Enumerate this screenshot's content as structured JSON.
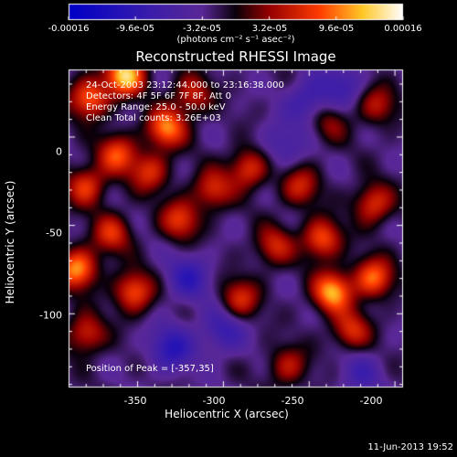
{
  "chart_data": {
    "type": "heatmap",
    "title": "Reconstructed RHESSI Image",
    "xlabel": "Heliocentric X (arcsec)",
    "ylabel": "Heliocentric Y (arcsec)",
    "xlim": [
      -390,
      -195
    ],
    "ylim": [
      -142,
      38
    ],
    "x_ticks": [
      -350,
      -300,
      -250,
      -200
    ],
    "y_ticks": [
      -100,
      -50,
      0
    ],
    "colorbar": {
      "min": -0.00016,
      "max": 0.00016,
      "tick_labels": [
        "-0.00016",
        "-9.6e-05",
        "-3.2e-05",
        "3.2e-05",
        "9.6e-05",
        "0.00016"
      ],
      "tick_values": [
        -0.00016,
        -9.6e-05,
        -3.2e-05,
        3.2e-05,
        9.6e-05,
        0.00016
      ],
      "units": "(photons cm⁻² s⁻¹ asec⁻²)"
    },
    "annotations": [
      "24-Oct-2003 23:12:44.000 to 23:16:38.000",
      "Detectors: 4F 5F 6F 7F 8F, Att 0",
      "Energy Range: 25.0 - 50.0 keV",
      "Clean     Total counts: 3.26E+03",
      "Position of Peak = [-357,35]"
    ],
    "peak": [
      -357,
      35
    ],
    "sources": [
      {
        "x": -357,
        "y": 35,
        "amp": 1.0
      },
      {
        "x": -378,
        "y": 22,
        "amp": 0.75
      },
      {
        "x": -333,
        "y": 5,
        "amp": 0.8
      },
      {
        "x": -362,
        "y": -10,
        "amp": 0.65
      },
      {
        "x": -380,
        "y": -28,
        "amp": 0.6
      },
      {
        "x": -343,
        "y": -20,
        "amp": 0.55
      },
      {
        "x": -385,
        "y": -75,
        "amp": 0.85
      },
      {
        "x": -365,
        "y": -55,
        "amp": 0.55
      },
      {
        "x": -352,
        "y": -88,
        "amp": 0.7
      },
      {
        "x": -325,
        "y": -47,
        "amp": 0.6
      },
      {
        "x": -306,
        "y": -30,
        "amp": 0.55
      },
      {
        "x": -285,
        "y": -18,
        "amp": 0.6
      },
      {
        "x": -255,
        "y": -28,
        "amp": 0.5
      },
      {
        "x": -242,
        "y": -58,
        "amp": 0.7
      },
      {
        "x": -236,
        "y": -88,
        "amp": 0.9
      },
      {
        "x": -212,
        "y": -80,
        "amp": 0.75
      },
      {
        "x": -225,
        "y": -110,
        "amp": 0.55
      },
      {
        "x": -270,
        "y": -62,
        "amp": 0.5
      },
      {
        "x": -290,
        "y": -92,
        "amp": 0.55
      },
      {
        "x": -262,
        "y": -130,
        "amp": 0.45
      },
      {
        "x": -212,
        "y": -38,
        "amp": 0.6
      },
      {
        "x": -210,
        "y": 18,
        "amp": 0.45
      },
      {
        "x": -238,
        "y": 8,
        "amp": 0.35
      },
      {
        "x": -318,
        "y": 24,
        "amp": 0.5
      },
      {
        "x": -380,
        "y": -112,
        "amp": 0.55
      }
    ],
    "negative_regions": [
      {
        "x": -320,
        "y": -80,
        "amp": 0.6
      },
      {
        "x": -330,
        "y": -120,
        "amp": 0.7
      },
      {
        "x": -300,
        "y": -110,
        "amp": 0.55
      },
      {
        "x": -250,
        "y": 20,
        "amp": 0.55
      },
      {
        "x": -230,
        "y": 30,
        "amp": 0.45
      },
      {
        "x": -265,
        "y": -5,
        "amp": 0.4
      },
      {
        "x": -220,
        "y": -135,
        "amp": 0.4
      }
    ]
  },
  "footer": {
    "timestamp": "11-Jun-2013 19:52"
  }
}
